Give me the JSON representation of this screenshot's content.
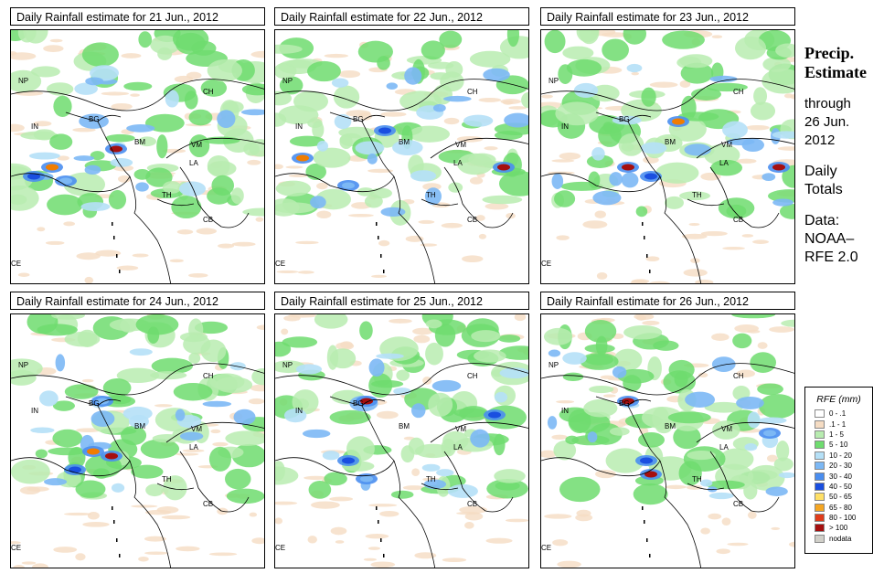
{
  "panels": [
    {
      "title": "Daily Rainfall estimate for  21 Jun., 2012",
      "heavy": [
        [
          25,
          160,
          "#1a4fe0"
        ],
        [
          45,
          150,
          "#f07d00"
        ],
        [
          115,
          130,
          "#a50f0f"
        ],
        [
          60,
          165,
          "#7cb8f5"
        ]
      ]
    },
    {
      "title": "Daily Rainfall estimate for  22 Jun., 2012",
      "heavy": [
        [
          30,
          140,
          "#f07d00"
        ],
        [
          250,
          150,
          "#a50f0f"
        ],
        [
          120,
          110,
          "#1a4fe0"
        ],
        [
          80,
          170,
          "#7cb8f5"
        ]
      ]
    },
    {
      "title": "Daily Rainfall estimate for  23 Jun., 2012",
      "heavy": [
        [
          95,
          150,
          "#a50f0f"
        ],
        [
          150,
          100,
          "#f07d00"
        ],
        [
          260,
          150,
          "#a50f0f"
        ],
        [
          120,
          160,
          "#1a4fe0"
        ]
      ]
    },
    {
      "title": "Daily Rainfall estimate for  24 Jun., 2012",
      "heavy": [
        [
          90,
          150,
          "#f07d00"
        ],
        [
          110,
          155,
          "#a50f0f"
        ],
        [
          70,
          170,
          "#1a4fe0"
        ],
        [
          100,
          95,
          "#7cb8f5"
        ]
      ]
    },
    {
      "title": "Daily Rainfall estimate for  25 Jun., 2012",
      "heavy": [
        [
          100,
          95,
          "#a50f0f"
        ],
        [
          80,
          160,
          "#1a4fe0"
        ],
        [
          240,
          110,
          "#1a4fe0"
        ],
        [
          100,
          180,
          "#7cb8f5"
        ]
      ]
    },
    {
      "title": "Daily Rainfall estimate for  26 Jun., 2012",
      "heavy": [
        [
          95,
          95,
          "#a50f0f"
        ],
        [
          115,
          160,
          "#1a4fe0"
        ],
        [
          120,
          175,
          "#a50f0f"
        ],
        [
          250,
          130,
          "#7cb8f5"
        ]
      ]
    }
  ],
  "country_labels": [
    "NP",
    "CH",
    "IN",
    "BG",
    "BM",
    "VM",
    "LA",
    "TH",
    "CB",
    "CE"
  ],
  "side": {
    "heading": [
      "Precip.",
      "Estimate"
    ],
    "through": [
      "through",
      "26 Jun.",
      "2012"
    ],
    "totals": [
      "Daily",
      "Totals"
    ],
    "source": [
      "Data:",
      "NOAA–",
      "RFE 2.0"
    ]
  },
  "legend": {
    "title": "RFE (mm)",
    "items": [
      {
        "label": "0 - .1",
        "color": "#ffffff"
      },
      {
        "label": ".1 - 1",
        "color": "#f5dcc3"
      },
      {
        "label": "1 - 5",
        "color": "#b8ecb0"
      },
      {
        "label": "5 - 10",
        "color": "#6fdc6f"
      },
      {
        "label": "10 - 20",
        "color": "#b5e0f7"
      },
      {
        "label": "20 - 30",
        "color": "#7cb8f5"
      },
      {
        "label": "30 - 40",
        "color": "#4a8ef0"
      },
      {
        "label": "40 - 50",
        "color": "#1a4fe0"
      },
      {
        "label": "50 - 65",
        "color": "#ffe066"
      },
      {
        "label": "65 - 80",
        "color": "#f5a623"
      },
      {
        "label": "80 - 100",
        "color": "#e03c1a"
      },
      {
        "label": "> 100",
        "color": "#a50f0f"
      },
      {
        "label": "nodata",
        "color": "#d0cfc8"
      }
    ]
  }
}
